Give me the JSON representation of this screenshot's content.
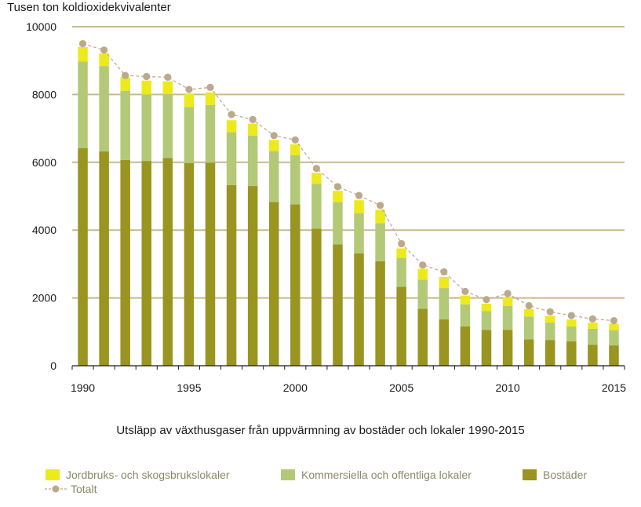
{
  "chart_data": {
    "type": "bar",
    "stacked": true,
    "ylabel": "Tusen ton koldioxidekvivalenter",
    "title": "Utsläpp av växthusgaser från uppvärmning av bostäder och lokaler 1990-2015",
    "ylim": [
      0,
      10000
    ],
    "yticks": [
      "0",
      "2000",
      "4000",
      "6000",
      "8000",
      "10000"
    ],
    "xticks": [
      "1990",
      "1995",
      "2000",
      "2005",
      "2010",
      "2015"
    ],
    "categories": [
      "1990",
      "1991",
      "1992",
      "1993",
      "1994",
      "1995",
      "1996",
      "1997",
      "1998",
      "1999",
      "2000",
      "2001",
      "2002",
      "2003",
      "2004",
      "2005",
      "2006",
      "2007",
      "2008",
      "2009",
      "2010",
      "2011",
      "2012",
      "2013",
      "2014",
      "2015"
    ],
    "series": [
      {
        "name": "Bostäder",
        "color": "#9a9421",
        "values": [
          6420,
          6320,
          6070,
          6040,
          6130,
          5980,
          5990,
          5330,
          5300,
          4830,
          4760,
          4040,
          3580,
          3310,
          3080,
          2330,
          1680,
          1370,
          1160,
          1060,
          1060,
          780,
          760,
          720,
          620,
          600
        ]
      },
      {
        "name": "Kommersiella och offentliga lokaler",
        "color": "#b3c978",
        "values": [
          2550,
          2520,
          2040,
          1960,
          1880,
          1650,
          1700,
          1560,
          1490,
          1500,
          1450,
          1320,
          1250,
          1190,
          1120,
          850,
          860,
          920,
          650,
          550,
          700,
          670,
          510,
          440,
          470,
          450
        ]
      },
      {
        "name": "Jordbruks- och skogsbrukslokaler",
        "color": "#ecea1c",
        "values": [
          430,
          370,
          400,
          410,
          380,
          380,
          370,
          350,
          350,
          330,
          320,
          330,
          330,
          380,
          400,
          280,
          320,
          330,
          260,
          220,
          250,
          220,
          200,
          200,
          180,
          190
        ]
      }
    ],
    "total": {
      "name": "Totalt",
      "color": "#bca98a",
      "values": [
        9500,
        9310,
        8560,
        8530,
        8510,
        8150,
        8210,
        7410,
        7260,
        6790,
        6660,
        5820,
        5280,
        5020,
        4730,
        3600,
        2970,
        2770,
        2190,
        1950,
        2130,
        1770,
        1590,
        1480,
        1380,
        1330
      ]
    },
    "grid": true,
    "gridColor": "#c8b98e",
    "legend": [
      "Jordbruks- och skogsbrukslokaler",
      "Kommersiella och offentliga lokaler",
      "Bostäder",
      "Totalt"
    ],
    "legend_position": "bottom"
  }
}
